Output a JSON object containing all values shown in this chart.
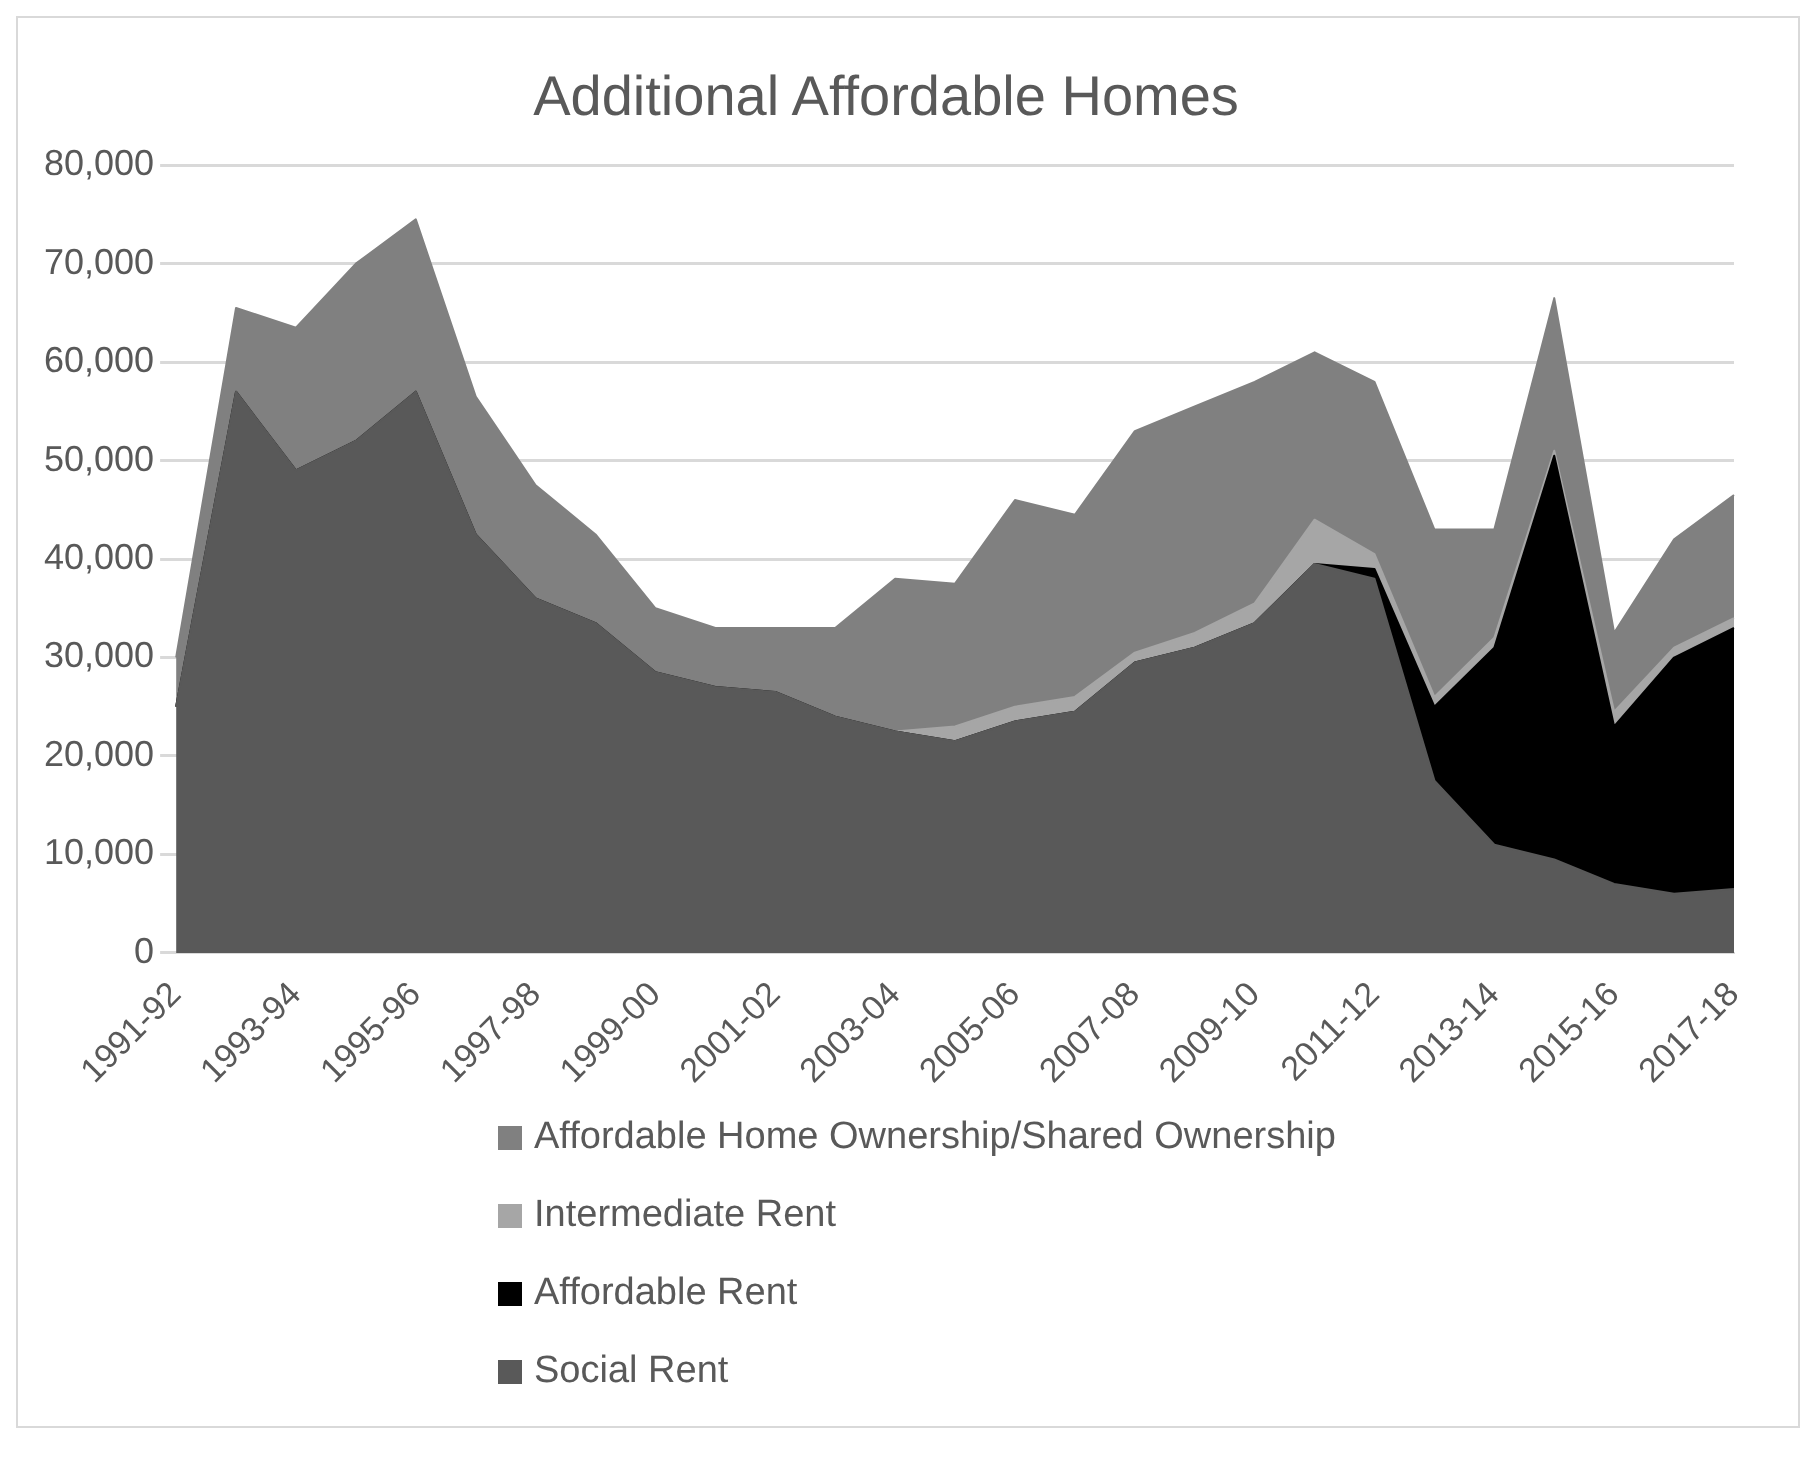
{
  "chart_data": {
    "type": "area",
    "title": "Additional Affordable Homes",
    "stacked": true,
    "categories": [
      "1991-92",
      null,
      "1993-94",
      null,
      "1995-96",
      null,
      "1997-98",
      null,
      "1999-00",
      null,
      "2001-02",
      null,
      "2003-04",
      null,
      "2005-06",
      null,
      "2007-08",
      null,
      "2009-10",
      null,
      "2011-12",
      null,
      "2013-14",
      null,
      "2015-16",
      null,
      "2017-18"
    ],
    "series": [
      {
        "name": "Social Rent",
        "color": "#595959",
        "values": [
          25000,
          57000,
          49000,
          52000,
          57000,
          42500,
          36000,
          33500,
          28500,
          27000,
          26500,
          24000,
          22500,
          21500,
          23500,
          24500,
          29500,
          31000,
          33500,
          39500,
          38000,
          17500,
          11000,
          9500,
          7000,
          6000,
          6500
        ]
      },
      {
        "name": "Affordable Rent",
        "color": "#000000",
        "values": [
          0,
          0,
          0,
          0,
          0,
          0,
          0,
          0,
          0,
          0,
          0,
          0,
          0,
          0,
          0,
          0,
          0,
          0,
          0,
          0,
          1000,
          7500,
          20000,
          41000,
          16000,
          24000,
          26500
        ]
      },
      {
        "name": "Intermediate Rent",
        "color": "#a6a6a6",
        "values": [
          0,
          0,
          0,
          0,
          0,
          0,
          0,
          0,
          0,
          0,
          0,
          0,
          0,
          1500,
          1500,
          1500,
          1000,
          1500,
          2000,
          4500,
          1500,
          1000,
          1000,
          500,
          1500,
          1000,
          1000
        ]
      },
      {
        "name": "Affordable Home Ownership/Shared Ownership",
        "color": "#808080",
        "values": [
          5000,
          8500,
          14500,
          18000,
          17500,
          14000,
          11500,
          9000,
          6500,
          6000,
          6500,
          9000,
          15500,
          14500,
          21000,
          18500,
          22500,
          23000,
          22500,
          17000,
          17500,
          17000,
          11000,
          15500,
          8000,
          11000,
          12500
        ]
      }
    ],
    "ylim": [
      0,
      80000
    ],
    "yticks": [
      0,
      {
        "value": 10000,
        "label": "10,000"
      },
      {
        "value": 20000,
        "label": "20,000"
      },
      {
        "value": 30000,
        "label": "30,000"
      },
      {
        "value": 40000,
        "label": "40,000"
      },
      {
        "value": 50000,
        "label": "50,000"
      },
      {
        "value": 60000,
        "label": "60,000"
      },
      {
        "value": 70000,
        "label": "70,000"
      },
      {
        "value": 80000,
        "label": "80,000"
      }
    ],
    "grid": "y",
    "legend": "bottom"
  }
}
